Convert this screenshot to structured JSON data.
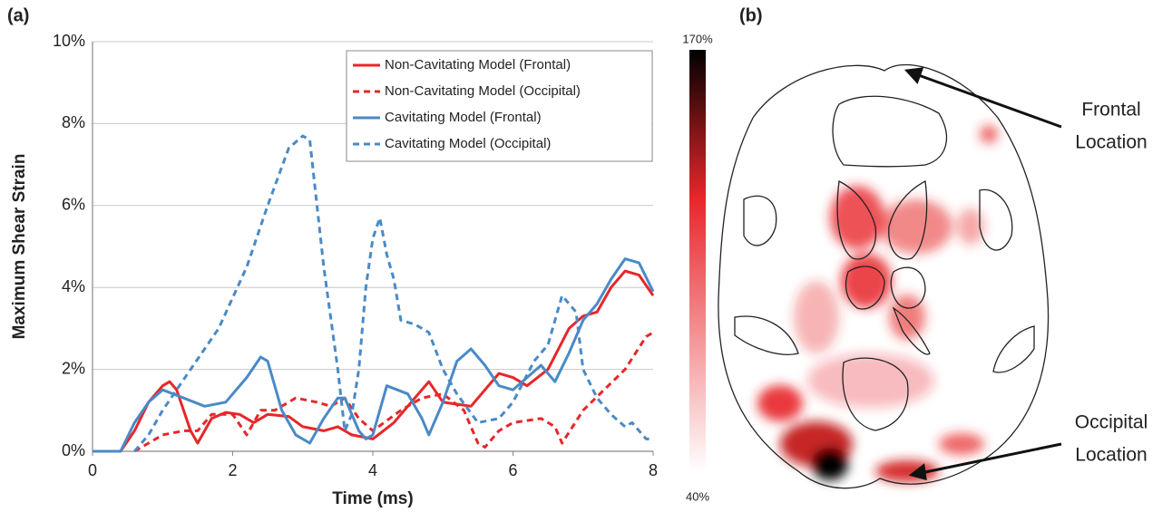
{
  "chart_data": {
    "type": "line",
    "panel_label": "(a)",
    "x_label": "Time (ms)",
    "y_label": "Maximum Shear Strain",
    "xlim": [
      0,
      8
    ],
    "xticks": [
      0,
      2,
      4,
      6,
      8
    ],
    "ylim": [
      0,
      10
    ],
    "yticks": [
      {
        "value": 0,
        "label": "0%"
      },
      {
        "value": 2,
        "label": "2%"
      },
      {
        "value": 4,
        "label": "4%"
      },
      {
        "value": 6,
        "label": "6%"
      },
      {
        "value": 8,
        "label": "8%"
      },
      {
        "value": 10,
        "label": "10%"
      }
    ],
    "grid": true,
    "legend": "upper right",
    "series": [
      {
        "name": "Non-Cavitating Model (Frontal)",
        "color": "#e8262a",
        "dashed": false,
        "x": [
          0,
          0.4,
          0.6,
          0.8,
          1.0,
          1.1,
          1.2,
          1.4,
          1.5,
          1.7,
          1.9,
          2.1,
          2.3,
          2.5,
          2.8,
          3.0,
          3.3,
          3.5,
          3.7,
          4.0,
          4.3,
          4.6,
          4.8,
          5.0,
          5.4,
          5.6,
          5.8,
          6.0,
          6.2,
          6.5,
          6.8,
          7.0,
          7.2,
          7.4,
          7.6,
          7.8,
          8.0
        ],
        "values": [
          0,
          0,
          0.5,
          1.2,
          1.6,
          1.7,
          1.5,
          0.5,
          0.2,
          0.8,
          0.95,
          0.9,
          0.7,
          0.9,
          0.85,
          0.6,
          0.5,
          0.6,
          0.4,
          0.3,
          0.7,
          1.3,
          1.7,
          1.2,
          1.1,
          1.5,
          1.9,
          1.8,
          1.6,
          2.0,
          3.0,
          3.3,
          3.4,
          4.0,
          4.4,
          4.3,
          3.8
        ]
      },
      {
        "name": "Non-Cavitating Model (Occipital)",
        "color": "#e8262a",
        "dashed": true,
        "x": [
          0.6,
          0.8,
          1.0,
          1.3,
          1.5,
          1.7,
          2.0,
          2.2,
          2.4,
          2.6,
          2.9,
          3.2,
          3.4,
          3.6,
          3.8,
          4.0,
          4.4,
          4.7,
          5.0,
          5.3,
          5.5,
          5.6,
          5.8,
          6.0,
          6.4,
          6.6,
          6.7,
          7.0,
          7.3,
          7.6,
          7.9,
          8.0
        ],
        "values": [
          0,
          0.2,
          0.4,
          0.5,
          0.5,
          0.9,
          0.9,
          0.4,
          1.0,
          1.0,
          1.3,
          1.2,
          1.1,
          1.3,
          0.8,
          0.5,
          1.0,
          1.3,
          1.4,
          1.0,
          0.2,
          0.1,
          0.5,
          0.7,
          0.8,
          0.6,
          0.2,
          1.0,
          1.5,
          2.0,
          2.8,
          2.9
        ]
      },
      {
        "name": "Cavitating Model (Frontal)",
        "color": "#4a8ac6",
        "dashed": false,
        "x": [
          0,
          0.4,
          0.6,
          0.8,
          1.0,
          1.3,
          1.6,
          1.9,
          2.2,
          2.4,
          2.5,
          2.7,
          2.9,
          3.1,
          3.3,
          3.5,
          3.6,
          3.8,
          3.9,
          4.0,
          4.2,
          4.5,
          4.7,
          4.8,
          5.0,
          5.2,
          5.4,
          5.6,
          5.8,
          6.0,
          6.2,
          6.4,
          6.6,
          6.8,
          7.0,
          7.2,
          7.4,
          7.6,
          7.8,
          8.0
        ],
        "values": [
          0,
          0,
          0.7,
          1.2,
          1.5,
          1.3,
          1.1,
          1.2,
          1.8,
          2.3,
          2.2,
          1.0,
          0.4,
          0.2,
          0.8,
          1.3,
          1.3,
          0.5,
          0.3,
          0.4,
          1.6,
          1.4,
          0.8,
          0.4,
          1.2,
          2.2,
          2.5,
          2.1,
          1.6,
          1.5,
          1.8,
          2.1,
          1.7,
          2.4,
          3.2,
          3.6,
          4.2,
          4.7,
          4.6,
          3.9
        ]
      },
      {
        "name": "Cavitating Model (Occipital)",
        "color": "#4a8ac6",
        "dashed": true,
        "x": [
          0.6,
          0.8,
          1.0,
          1.4,
          1.8,
          2.2,
          2.5,
          2.8,
          3.0,
          3.1,
          3.3,
          3.5,
          3.6,
          3.7,
          3.8,
          3.9,
          4.0,
          4.1,
          4.2,
          4.3,
          4.4,
          4.6,
          4.8,
          5.0,
          5.2,
          5.5,
          5.8,
          6.0,
          6.3,
          6.5,
          6.7,
          6.9,
          7.0,
          7.2,
          7.4,
          7.6,
          7.7,
          7.9,
          8.0
        ],
        "values": [
          0,
          0.4,
          1.0,
          2.0,
          3.0,
          4.5,
          6.0,
          7.4,
          7.7,
          7.6,
          4.5,
          2.0,
          0.5,
          0.9,
          2.0,
          4.0,
          5.2,
          5.7,
          4.8,
          4.2,
          3.2,
          3.1,
          2.9,
          2.0,
          1.4,
          0.7,
          0.8,
          1.2,
          2.2,
          2.6,
          3.8,
          3.4,
          2.0,
          1.3,
          0.9,
          0.6,
          0.7,
          0.3,
          0.3
        ]
      }
    ]
  },
  "panel_b": {
    "label": "(b)",
    "colorbar_max": "170%",
    "colorbar_min": "40%",
    "frontal_annotation": [
      "Frontal",
      "Location"
    ],
    "occipital_annotation": [
      "Occipital",
      "Location"
    ]
  }
}
